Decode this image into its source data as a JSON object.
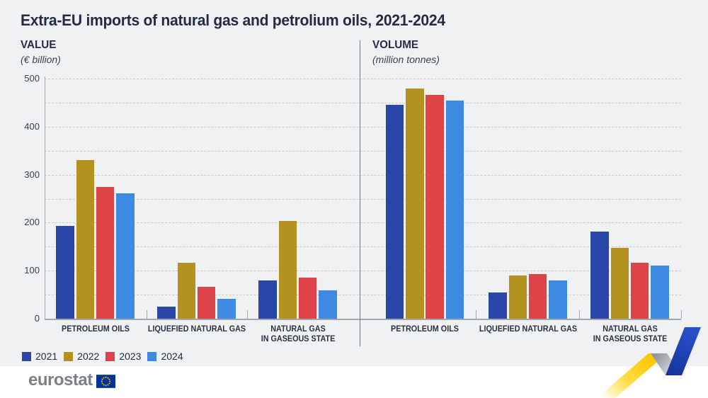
{
  "title": "Extra-EU imports of natural gas and petrolium oils, 2021-2024",
  "panels": [
    {
      "header": "VALUE",
      "subheader": "(€ billion)"
    },
    {
      "header": "VOLUME",
      "subheader": "(million tonnes)"
    }
  ],
  "legend": {
    "items": [
      {
        "label": "2021",
        "color": "#2a46a8"
      },
      {
        "label": "2022",
        "color": "#b3921f"
      },
      {
        "label": "2023",
        "color": "#de4348"
      },
      {
        "label": "2024",
        "color": "#3e89e2"
      }
    ]
  },
  "chart_data": [
    {
      "type": "bar",
      "title": "VALUE",
      "subtitle": "(€ billion)",
      "categories": [
        "PETROLEUM OILS",
        "LIQUEFIED NATURAL GAS",
        "NATURAL GAS\nIN GASEOUS STATE"
      ],
      "series": [
        {
          "name": "2021",
          "values": [
            193,
            25,
            79
          ]
        },
        {
          "name": "2022",
          "values": [
            331,
            117,
            203
          ]
        },
        {
          "name": "2023",
          "values": [
            274,
            67,
            85
          ]
        },
        {
          "name": "2024",
          "values": [
            261,
            41,
            59
          ]
        }
      ],
      "ylim": [
        0,
        500
      ],
      "yticks": [
        0,
        100,
        200,
        300,
        400,
        500
      ],
      "grid": "horizontal dashed, every 50",
      "legend_position": "bottom-left"
    },
    {
      "type": "bar",
      "title": "VOLUME",
      "subtitle": "(million tonnes)",
      "categories": [
        "PETROLEUM OILS",
        "LIQUEFIED NATURAL GAS",
        "NATURAL GAS\nIN GASEOUS STATE"
      ],
      "series": [
        {
          "name": "2021",
          "values": [
            445,
            55,
            182
          ]
        },
        {
          "name": "2022",
          "values": [
            479,
            90,
            148
          ]
        },
        {
          "name": "2023",
          "values": [
            466,
            93,
            117
          ]
        },
        {
          "name": "2024",
          "values": [
            454,
            79,
            111
          ]
        }
      ],
      "ylim": [
        0,
        500
      ],
      "yticks": [
        0,
        100,
        200,
        300,
        400,
        500
      ],
      "grid": "horizontal dashed, every 50",
      "legend_position": "shared with VALUE panel"
    }
  ],
  "footer": {
    "brand": "eurostat"
  },
  "colors": {
    "background": "#f0f1f2",
    "footer_strip": "#ffffff",
    "title_text": "#232c42",
    "grid": "#c7cacd",
    "axis": "#a2a7ad",
    "divider": "#6f7682",
    "bar_2021": "#2a46a8",
    "bar_2022": "#b3921f",
    "bar_2023": "#de4348",
    "bar_2024": "#3e89e2",
    "logo_text": "#7c8086",
    "flag_blue": "#003399",
    "flag_stars": "#ffcc00",
    "ribbon_yellow": "#ffd617",
    "ribbon_gray": "#c4c8cd",
    "ribbon_blue": "#2148c4"
  }
}
